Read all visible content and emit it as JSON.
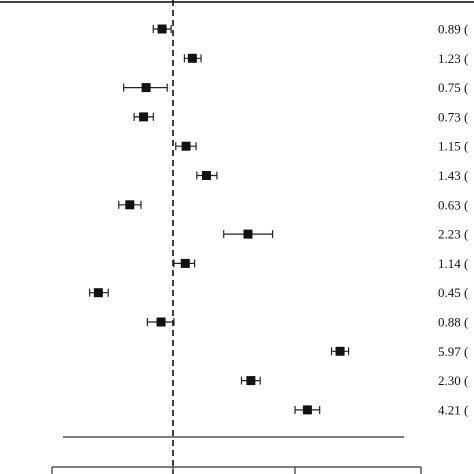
{
  "chart_data": {
    "type": "scatter",
    "subtype": "forest-plot",
    "title": "",
    "xlabel": "",
    "ylabel": "",
    "x_scale": "log",
    "reference_line": 1.0,
    "grid": false,
    "legend": "none",
    "rows": [
      {
        "estimate": 0.89,
        "lower": 0.81,
        "upper": 0.98,
        "label": "0.89 ("
      },
      {
        "estimate": 1.23,
        "lower": 1.13,
        "upper": 1.35,
        "label": "1.23 ("
      },
      {
        "estimate": 0.75,
        "lower": 0.59,
        "upper": 0.94,
        "label": "0.75 ("
      },
      {
        "estimate": 0.73,
        "lower": 0.66,
        "upper": 0.81,
        "label": "0.73 ("
      },
      {
        "estimate": 1.15,
        "lower": 1.03,
        "upper": 1.28,
        "label": "1.15 ("
      },
      {
        "estimate": 1.43,
        "lower": 1.29,
        "upper": 1.6,
        "label": "1.43 ("
      },
      {
        "estimate": 0.63,
        "lower": 0.56,
        "upper": 0.71,
        "label": "0.63 ("
      },
      {
        "estimate": 2.23,
        "lower": 1.72,
        "upper": 2.9,
        "label": "2.23 ("
      },
      {
        "estimate": 1.14,
        "lower": 1.01,
        "upper": 1.26,
        "label": "1.14 ("
      },
      {
        "estimate": 0.45,
        "lower": 0.41,
        "upper": 0.5,
        "label": "0.45 ("
      },
      {
        "estimate": 0.88,
        "lower": 0.76,
        "upper": 1.01,
        "label": "0.88 ("
      },
      {
        "estimate": 5.97,
        "lower": 5.45,
        "upper": 6.54,
        "label": "5.97 ("
      },
      {
        "estimate": 2.3,
        "lower": 2.08,
        "upper": 2.54,
        "label": "2.30 ("
      },
      {
        "estimate": 4.21,
        "lower": 3.69,
        "upper": 4.8,
        "label": "4.21 ("
      }
    ]
  },
  "style": {
    "marker_color": "#111111",
    "line_color": "#222222",
    "ref_line_color": "#111111"
  }
}
